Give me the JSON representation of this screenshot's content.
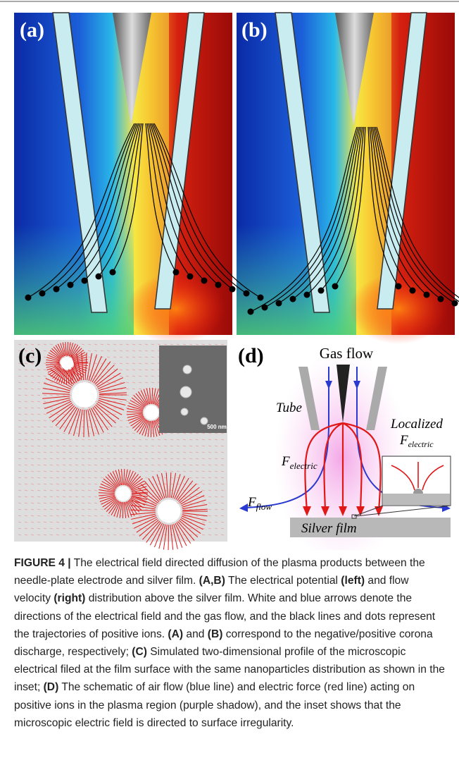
{
  "panels": {
    "a": {
      "label": "(a)"
    },
    "b": {
      "label": "(b)"
    },
    "c": {
      "label": "(c)",
      "scale_bar": "500 nm"
    },
    "d": {
      "label": "(d)",
      "gas_flow": "Gas flow",
      "tube": "Tube",
      "localized": "Localized",
      "f_electric_inset": {
        "main": "F",
        "sub": "electric"
      },
      "f_electric": {
        "main": "F",
        "sub": "electric"
      },
      "f_flow": {
        "main": "F",
        "sub": "flow"
      },
      "silver_film": "Silver film"
    }
  },
  "caption": {
    "segments": [
      {
        "text": "FIGURE 4 |",
        "bold": true
      },
      {
        "text": " The electrical field directed diffusion of the plasma products between the needle-plate electrode and silver film. ",
        "bold": false
      },
      {
        "text": "(A,B)",
        "bold": true
      },
      {
        "text": " The electrical potential ",
        "bold": false
      },
      {
        "text": "(left)",
        "bold": true
      },
      {
        "text": " and flow velocity ",
        "bold": false
      },
      {
        "text": "(right)",
        "bold": true
      },
      {
        "text": " distribution above the silver film. White and blue arrows denote the directions of the electrical field and the gas flow, and the black lines and dots represent the trajectories of positive ions. ",
        "bold": false
      },
      {
        "text": "(A)",
        "bold": true
      },
      {
        "text": " and ",
        "bold": false
      },
      {
        "text": "(B)",
        "bold": true
      },
      {
        "text": " correspond to the negative/positive corona discharge, respectively; ",
        "bold": false
      },
      {
        "text": "(C)",
        "bold": true
      },
      {
        "text": " Simulated two-dimensional profile of the microscopic electrical filed at the film surface with the same nanoparticles distribution as shown in the inset; ",
        "bold": false
      },
      {
        "text": "(D)",
        "bold": true
      },
      {
        "text": " The schematic of air flow (blue line) and electric force (red line) acting on positive ions in the plasma region (purple shadow), and the inset shows that the microscopic electric field is directed to surface irregularity.",
        "bold": false
      }
    ]
  }
}
